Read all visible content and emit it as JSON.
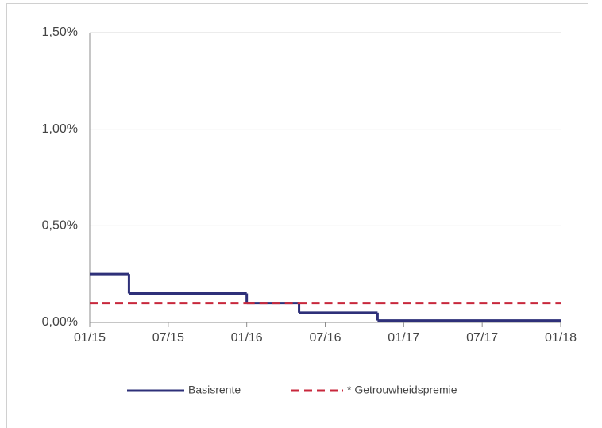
{
  "chart_data": {
    "type": "line",
    "step": "post",
    "x": [
      "2015-01",
      "2015-04",
      "2016-01",
      "2016-05",
      "2016-11",
      "2018-01"
    ],
    "series": [
      {
        "name": "Basisrente",
        "color": "#2e3079",
        "dash": false,
        "values": [
          0.25,
          0.15,
          0.1,
          0.05,
          0.01,
          0.01
        ]
      },
      {
        "name": "* Getrouwheidspremie",
        "color": "#c8283c",
        "dash": true,
        "values": [
          0.1,
          0.1,
          0.1,
          0.1,
          0.1,
          0.1
        ]
      }
    ],
    "xlim": [
      "2015-01",
      "2018-01"
    ],
    "xticks": [
      {
        "value": "2015-01",
        "label": "01/15"
      },
      {
        "value": "2015-07",
        "label": "07/15"
      },
      {
        "value": "2016-01",
        "label": "01/16"
      },
      {
        "value": "2016-07",
        "label": "07/16"
      },
      {
        "value": "2017-01",
        "label": "01/17"
      },
      {
        "value": "2017-07",
        "label": "07/17"
      },
      {
        "value": "2018-01",
        "label": "01/18"
      }
    ],
    "ylim": [
      0,
      1.5
    ],
    "yticks": [
      {
        "value": 0,
        "label": "0,00%"
      },
      {
        "value": 0.5,
        "label": "0,50%"
      },
      {
        "value": 1,
        "label": "1,00%"
      },
      {
        "value": 1.5,
        "label": "1,50%"
      }
    ],
    "grid": true,
    "legend": "bottom"
  }
}
